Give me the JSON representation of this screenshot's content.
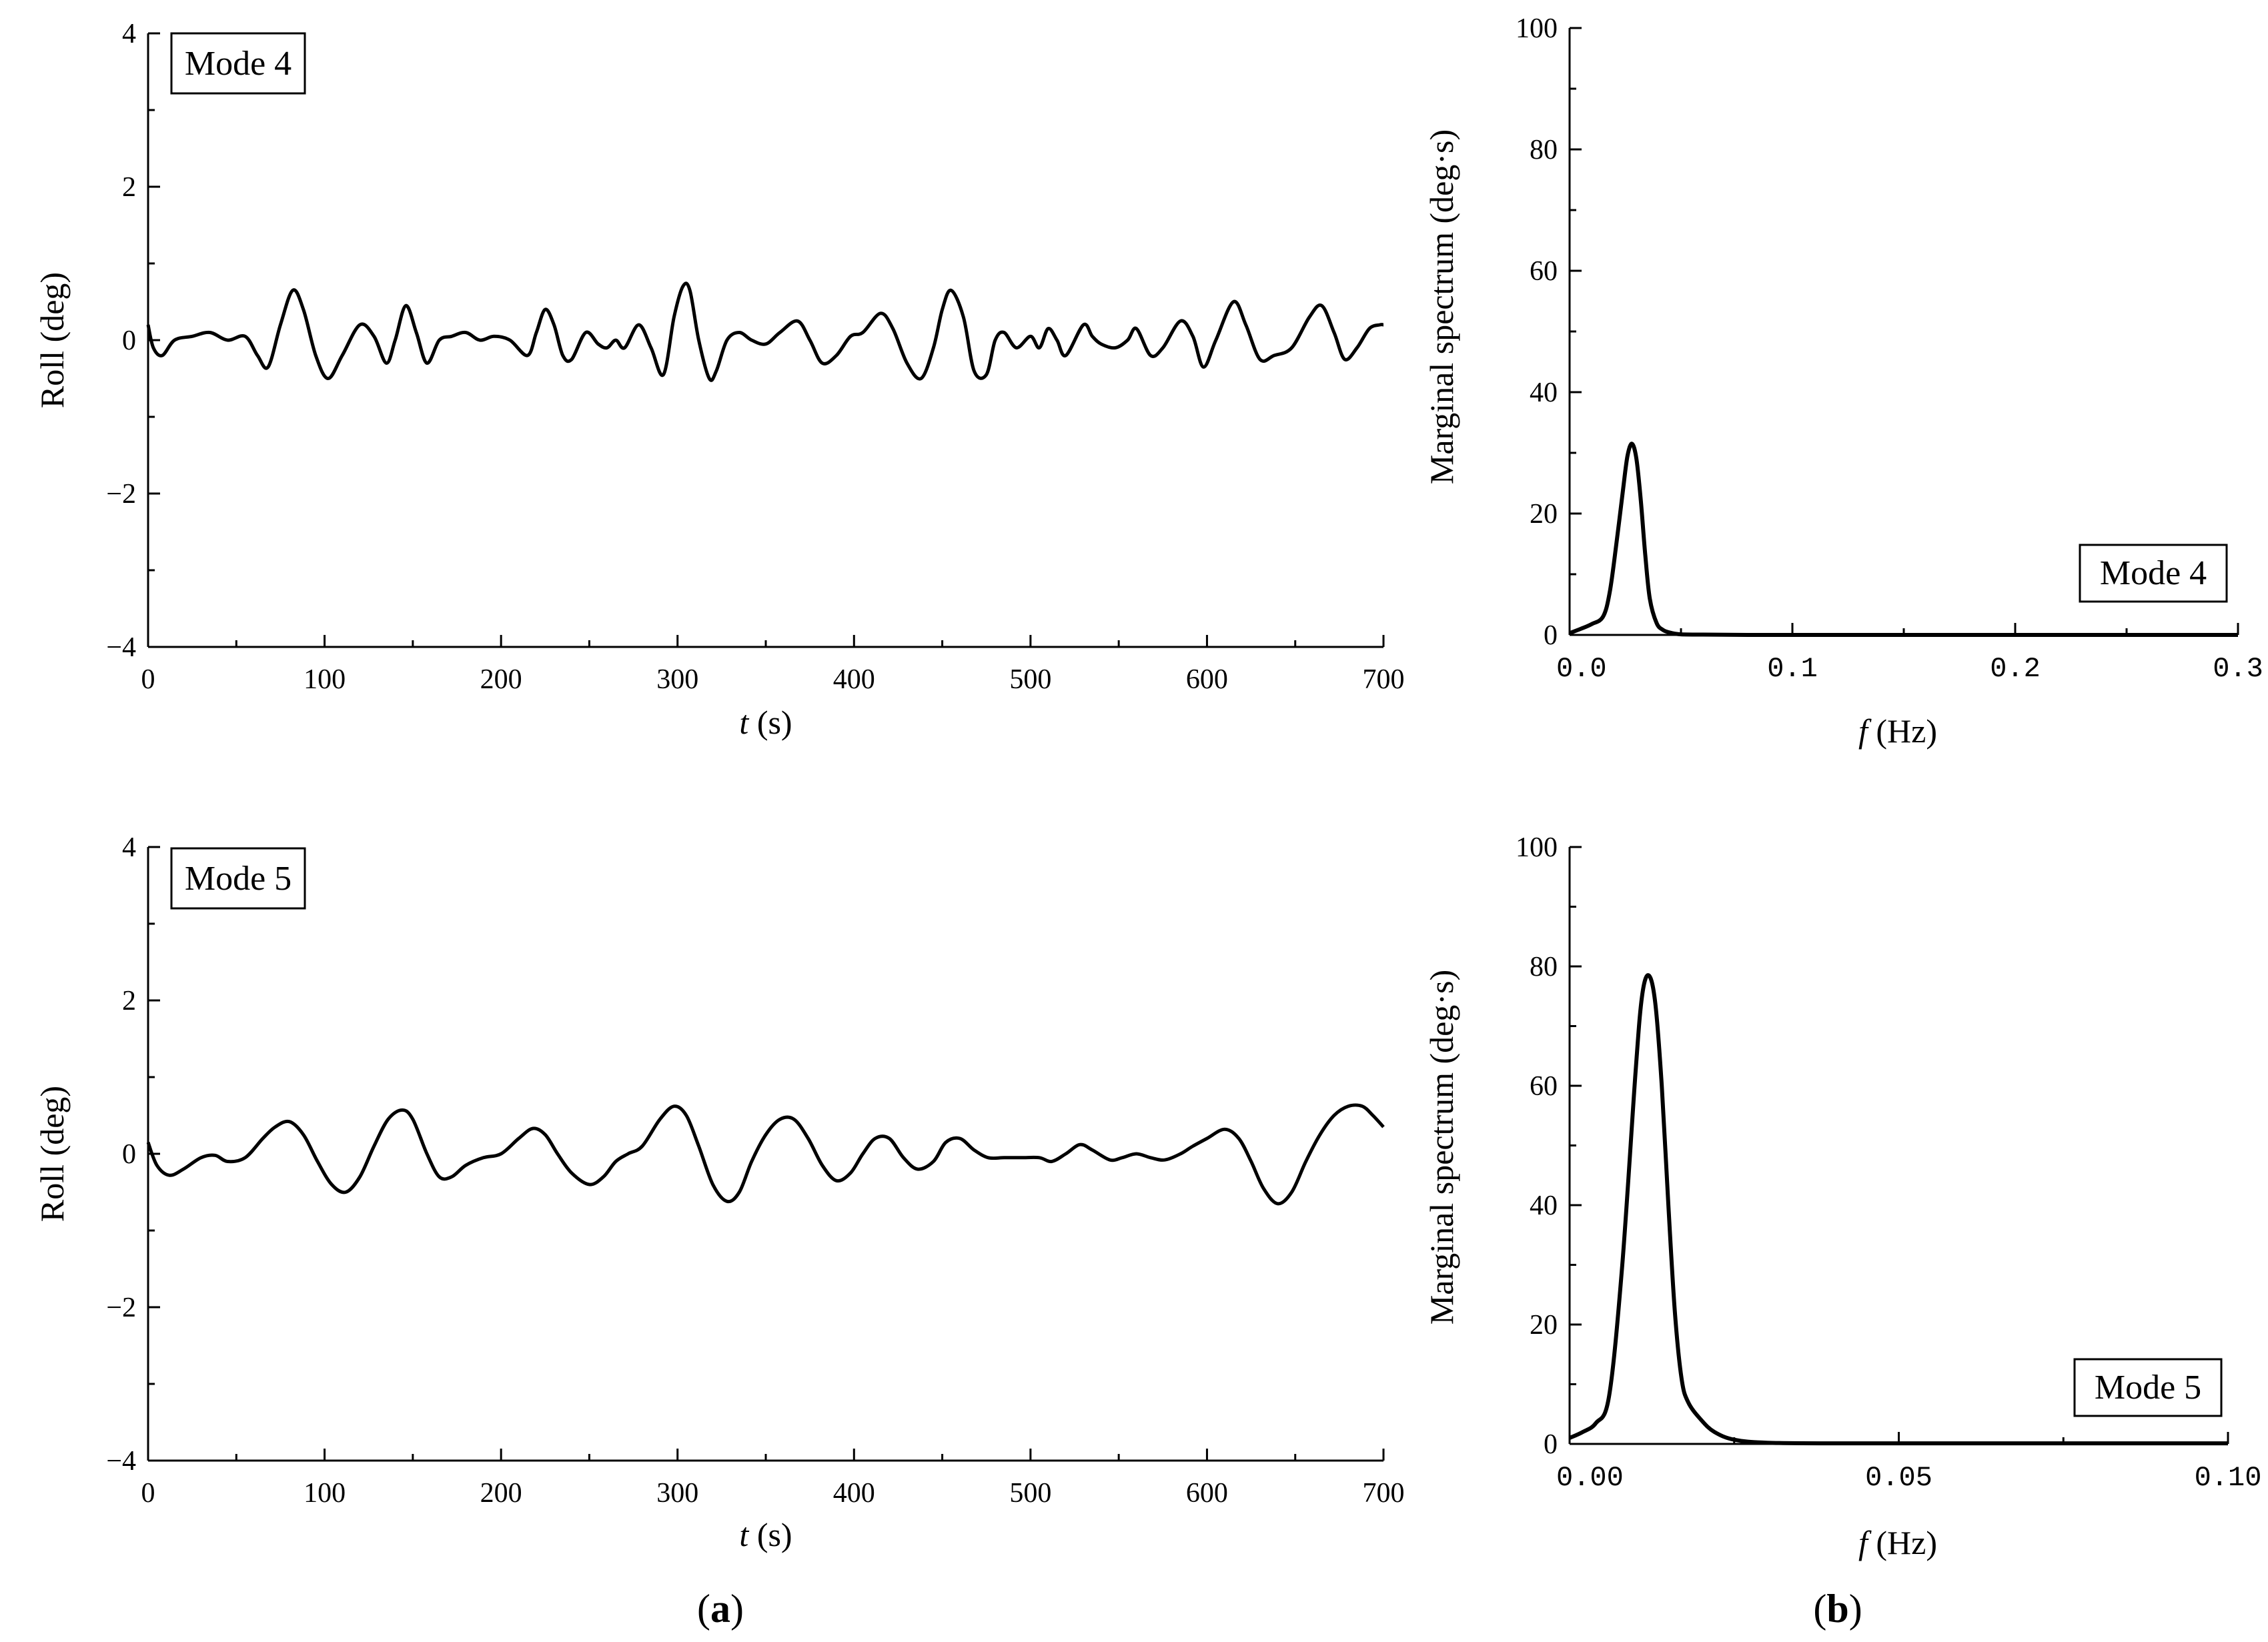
{
  "chart_data": [
    {
      "id": "a-mode4",
      "type": "line",
      "panel": "a",
      "mode_label": "Mode 4",
      "xlabel_italic": "t",
      "xlabel_rest": "(s)",
      "ylabel": "Roll (deg)",
      "xlim": [
        0,
        700
      ],
      "ylim": [
        -4,
        4
      ],
      "xticks": [
        0,
        100,
        200,
        300,
        400,
        500,
        600,
        700
      ],
      "xtick_labels": [
        "0",
        "100",
        "200",
        "300",
        "400",
        "500",
        "600",
        "700"
      ],
      "yticks": [
        -4,
        -2,
        0,
        2,
        4
      ],
      "ytick_labels": [
        "−4",
        "−2",
        "0",
        "2",
        "4"
      ],
      "series": [
        {
          "x": [
            0,
            3,
            8,
            15,
            25,
            35,
            45,
            55,
            62,
            68,
            75,
            82,
            88,
            95,
            102,
            110,
            120,
            128,
            135,
            140,
            146,
            152,
            158,
            165,
            172,
            180,
            188,
            196,
            205,
            215,
            220,
            225,
            230,
            235,
            240,
            248,
            255,
            260,
            265,
            270,
            278,
            285,
            292,
            298,
            303,
            307,
            312,
            318,
            322,
            328,
            335,
            342,
            350,
            358,
            368,
            375,
            382,
            390,
            398,
            405,
            415,
            422,
            430,
            438,
            445,
            450,
            455,
            462,
            468,
            475,
            480,
            485,
            492,
            500,
            505,
            510,
            515,
            520,
            530,
            535,
            540,
            548,
            555,
            560,
            568,
            575,
            585,
            592,
            598,
            605,
            615,
            622,
            630,
            638,
            648,
            658,
            665,
            672,
            678,
            685,
            692,
            698,
            700
          ],
          "y": [
            0.2,
            -0.1,
            -0.2,
            0.0,
            0.05,
            0.1,
            0.0,
            0.05,
            -0.2,
            -0.35,
            0.2,
            0.65,
            0.4,
            -0.2,
            -0.5,
            -0.2,
            0.2,
            0.05,
            -0.3,
            0.0,
            0.45,
            0.1,
            -0.3,
            0.0,
            0.05,
            0.1,
            0.0,
            0.05,
            0.0,
            -0.2,
            0.1,
            0.4,
            0.2,
            -0.2,
            -0.25,
            0.1,
            -0.05,
            -0.1,
            0.0,
            -0.1,
            0.2,
            -0.1,
            -0.45,
            0.3,
            0.7,
            0.65,
            0.0,
            -0.5,
            -0.4,
            0.0,
            0.1,
            0.0,
            -0.05,
            0.1,
            0.25,
            0.0,
            -0.3,
            -0.2,
            0.05,
            0.1,
            0.35,
            0.15,
            -0.3,
            -0.5,
            -0.1,
            0.4,
            0.65,
            0.3,
            -0.4,
            -0.45,
            0.0,
            0.1,
            -0.1,
            0.05,
            -0.1,
            0.15,
            0.0,
            -0.2,
            0.2,
            0.05,
            -0.05,
            -0.1,
            0.0,
            0.15,
            -0.2,
            -0.1,
            0.25,
            0.05,
            -0.35,
            0.0,
            0.5,
            0.2,
            -0.25,
            -0.2,
            -0.1,
            0.3,
            0.45,
            0.1,
            -0.25,
            -0.1,
            0.15,
            0.2,
            0.2
          ]
        }
      ]
    },
    {
      "id": "b-mode4",
      "type": "line",
      "panel": "b",
      "mode_label": "Mode 4",
      "xlabel_italic": "f",
      "xlabel_rest": "(Hz)",
      "ylabel": "Marginal spectrum (deg·s)",
      "xlim": [
        0,
        0.3
      ],
      "ylim": [
        0,
        100
      ],
      "xticks": [
        0,
        0.1,
        0.2,
        0.3
      ],
      "xtick_labels": [
        "0.0",
        "0.1",
        "0.2",
        "0.3"
      ],
      "yticks": [
        0,
        20,
        40,
        60,
        80,
        100
      ],
      "ytick_labels": [
        "0",
        "20",
        "40",
        "60",
        "80",
        "100"
      ],
      "series": [
        {
          "x": [
            0,
            0.005,
            0.01,
            0.015,
            0.018,
            0.021,
            0.024,
            0.026,
            0.028,
            0.03,
            0.032,
            0.034,
            0.036,
            0.039,
            0.042,
            0.046,
            0.05,
            0.06,
            0.08,
            0.12,
            0.2,
            0.3
          ],
          "y": [
            0.3,
            1.0,
            1.8,
            3.0,
            7.0,
            15.0,
            24.0,
            29.5,
            31.5,
            29.0,
            22.0,
            13.0,
            6.0,
            2.0,
            0.8,
            0.3,
            0.1,
            0.05,
            0.0,
            0.0,
            0.0,
            0.0
          ]
        }
      ]
    },
    {
      "id": "a-mode5",
      "type": "line",
      "panel": "a",
      "mode_label": "Mode 5",
      "xlabel_italic": "t",
      "xlabel_rest": "(s)",
      "ylabel": "Roll (deg)",
      "xlim": [
        0,
        700
      ],
      "ylim": [
        -4,
        4
      ],
      "xticks": [
        0,
        100,
        200,
        300,
        400,
        500,
        600,
        700
      ],
      "xtick_labels": [
        "0",
        "100",
        "200",
        "300",
        "400",
        "500",
        "600",
        "700"
      ],
      "yticks": [
        -4,
        -2,
        0,
        2,
        4
      ],
      "ytick_labels": [
        "−4",
        "−2",
        "0",
        "2",
        "4"
      ],
      "series": [
        {
          "x": [
            0,
            5,
            12,
            20,
            30,
            38,
            45,
            55,
            65,
            72,
            80,
            88,
            96,
            104,
            112,
            120,
            128,
            136,
            144,
            150,
            158,
            165,
            172,
            180,
            190,
            200,
            210,
            218,
            225,
            232,
            240,
            250,
            258,
            265,
            272,
            280,
            290,
            298,
            305,
            312,
            320,
            328,
            335,
            342,
            350,
            358,
            366,
            374,
            382,
            390,
            398,
            405,
            412,
            420,
            428,
            436,
            445,
            452,
            460,
            468,
            476,
            485,
            495,
            505,
            512,
            520,
            528,
            535,
            545,
            552,
            560,
            568,
            576,
            585,
            592,
            600,
            610,
            618,
            625,
            632,
            640,
            648,
            656,
            664,
            672,
            680,
            688,
            694,
            700
          ],
          "y": [
            0.15,
            -0.15,
            -0.28,
            -0.2,
            -0.05,
            -0.02,
            -0.1,
            -0.05,
            0.2,
            0.35,
            0.42,
            0.25,
            -0.1,
            -0.4,
            -0.5,
            -0.3,
            0.1,
            0.45,
            0.57,
            0.45,
            0.0,
            -0.3,
            -0.3,
            -0.15,
            -0.05,
            0.0,
            0.2,
            0.33,
            0.25,
            0.0,
            -0.25,
            -0.4,
            -0.3,
            -0.1,
            0.0,
            0.1,
            0.45,
            0.62,
            0.5,
            0.1,
            -0.4,
            -0.62,
            -0.5,
            -0.1,
            0.25,
            0.45,
            0.45,
            0.2,
            -0.15,
            -0.35,
            -0.25,
            0.0,
            0.2,
            0.2,
            -0.05,
            -0.2,
            -0.1,
            0.15,
            0.2,
            0.05,
            -0.05,
            -0.05,
            -0.05,
            -0.05,
            -0.1,
            0.0,
            0.12,
            0.05,
            -0.08,
            -0.05,
            0.0,
            -0.05,
            -0.08,
            0.0,
            0.1,
            0.2,
            0.32,
            0.2,
            -0.1,
            -0.45,
            -0.65,
            -0.5,
            -0.1,
            0.25,
            0.5,
            0.62,
            0.62,
            0.5,
            0.35
          ]
        }
      ]
    },
    {
      "id": "b-mode5",
      "type": "line",
      "panel": "b",
      "mode_label": "Mode 5",
      "xlabel_italic": "f",
      "xlabel_rest": "(Hz)",
      "ylabel": "Marginal spectrum (deg·s)",
      "xlim": [
        0,
        0.1
      ],
      "ylim": [
        0,
        100
      ],
      "xticks": [
        0,
        0.05,
        0.1
      ],
      "xtick_labels": [
        "0.00",
        "0.05",
        "0.10"
      ],
      "yticks": [
        0,
        20,
        40,
        60,
        80,
        100
      ],
      "ytick_labels": [
        "0",
        "20",
        "40",
        "60",
        "80",
        "100"
      ],
      "series": [
        {
          "x": [
            0,
            0.002,
            0.004,
            0.006,
            0.008,
            0.01,
            0.011,
            0.012,
            0.013,
            0.014,
            0.015,
            0.016,
            0.017,
            0.018,
            0.02,
            0.022,
            0.025,
            0.03,
            0.04,
            0.06,
            0.1
          ],
          "y": [
            1.0,
            2.0,
            3.5,
            8.0,
            30.0,
            62.0,
            75.0,
            78.5,
            74.0,
            60.0,
            40.0,
            22.0,
            11.0,
            7.0,
            4.0,
            2.0,
            0.7,
            0.2,
            0.1,
            0.1,
            0.1
          ]
        }
      ]
    }
  ],
  "panel_labels": [
    {
      "open": "(",
      "letter": "a",
      "close": ")"
    },
    {
      "open": "(",
      "letter": "b",
      "close": ")"
    }
  ],
  "colors": {
    "line": "#000000",
    "axis": "#000000",
    "background": "#ffffff"
  }
}
